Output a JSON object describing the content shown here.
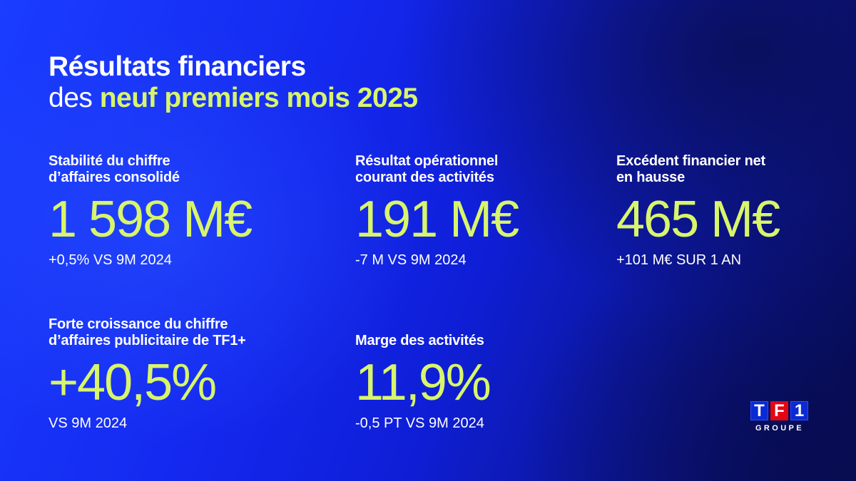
{
  "colors": {
    "accent": "#d8f56b",
    "text": "#ffffff",
    "bg_blue": "#1428ee",
    "bg_dark": "#070b52",
    "logo_red": "#e30613"
  },
  "header": {
    "title_line1": "Résultats financiers",
    "title_prefix": "des ",
    "title_highlight": "neuf premiers mois 2025"
  },
  "stats": [
    {
      "label": "Stabilité du chiffre\nd’affaires consolidé",
      "value": "1 598 M€",
      "comparison": "+0,5% VS 9M 2024"
    },
    {
      "label": "Résultat opérationnel\ncourant des activités",
      "value": "191 M€",
      "comparison": "-7 M VS 9M 2024"
    },
    {
      "label": "Excédent financier net\nen hausse",
      "value": "465 M€",
      "comparison": "+101 M€ SUR 1 AN"
    },
    {
      "label": "Forte croissance du chiffre\nd’affaires publicitaire de TF1+",
      "value": "+40,5%",
      "comparison": "VS 9M 2024"
    },
    {
      "label": "Marge des activités",
      "value": "11,9%",
      "comparison": "-0,5 PT VS 9M 2024"
    }
  ],
  "logo": {
    "letters": [
      "T",
      "F",
      "1"
    ],
    "subtitle": "GROUPE"
  }
}
